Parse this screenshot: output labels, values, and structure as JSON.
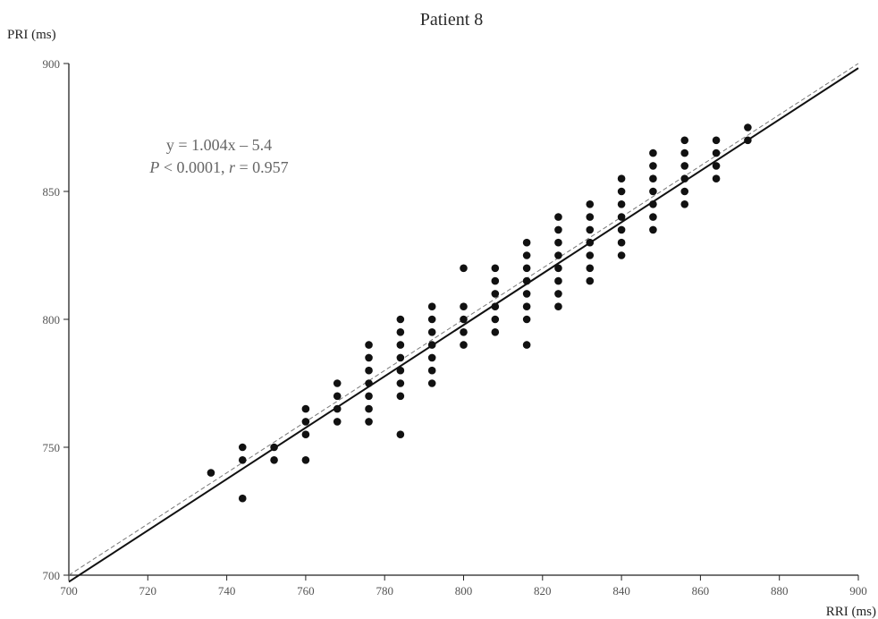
{
  "chart_data": {
    "type": "scatter",
    "title": "Patient 8",
    "xlabel": "RRI (ms)",
    "ylabel": "PRI (ms)",
    "xlim": [
      700,
      900
    ],
    "ylim": [
      700,
      900
    ],
    "x_ticks": [
      700,
      720,
      740,
      760,
      780,
      800,
      820,
      840,
      860,
      880,
      900
    ],
    "y_ticks": [
      700,
      750,
      800,
      850,
      900
    ],
    "grid": false,
    "legend": "none",
    "annotations": {
      "equation": "y = 1.004x – 5.4",
      "stats_p_symbol": "P",
      "stats_p_value": " < 0.0001, ",
      "stats_r_symbol": "r",
      "stats_r_value": " = 0.957"
    },
    "regression_line": {
      "slope": 1.004,
      "intercept": -5.4,
      "style": "solid"
    },
    "identity_line": {
      "slope": 1,
      "intercept": 0,
      "style": "dashed"
    },
    "points": [
      [
        736,
        740
      ],
      [
        744,
        730
      ],
      [
        744,
        745
      ],
      [
        744,
        750
      ],
      [
        752,
        745
      ],
      [
        752,
        750
      ],
      [
        760,
        745
      ],
      [
        760,
        755
      ],
      [
        760,
        760
      ],
      [
        760,
        765
      ],
      [
        768,
        760
      ],
      [
        768,
        765
      ],
      [
        768,
        770
      ],
      [
        768,
        775
      ],
      [
        776,
        760
      ],
      [
        776,
        765
      ],
      [
        776,
        770
      ],
      [
        776,
        775
      ],
      [
        776,
        780
      ],
      [
        776,
        785
      ],
      [
        776,
        790
      ],
      [
        784,
        755
      ],
      [
        784,
        770
      ],
      [
        784,
        775
      ],
      [
        784,
        780
      ],
      [
        784,
        785
      ],
      [
        784,
        790
      ],
      [
        784,
        795
      ],
      [
        784,
        800
      ],
      [
        792,
        775
      ],
      [
        792,
        780
      ],
      [
        792,
        785
      ],
      [
        792,
        790
      ],
      [
        792,
        795
      ],
      [
        792,
        800
      ],
      [
        792,
        805
      ],
      [
        800,
        790
      ],
      [
        800,
        795
      ],
      [
        800,
        800
      ],
      [
        800,
        805
      ],
      [
        800,
        820
      ],
      [
        808,
        795
      ],
      [
        808,
        800
      ],
      [
        808,
        805
      ],
      [
        808,
        810
      ],
      [
        808,
        815
      ],
      [
        808,
        820
      ],
      [
        816,
        790
      ],
      [
        816,
        800
      ],
      [
        816,
        805
      ],
      [
        816,
        810
      ],
      [
        816,
        815
      ],
      [
        816,
        820
      ],
      [
        816,
        825
      ],
      [
        816,
        830
      ],
      [
        824,
        805
      ],
      [
        824,
        810
      ],
      [
        824,
        815
      ],
      [
        824,
        820
      ],
      [
        824,
        825
      ],
      [
        824,
        830
      ],
      [
        824,
        835
      ],
      [
        824,
        840
      ],
      [
        832,
        815
      ],
      [
        832,
        820
      ],
      [
        832,
        825
      ],
      [
        832,
        830
      ],
      [
        832,
        835
      ],
      [
        832,
        840
      ],
      [
        832,
        845
      ],
      [
        840,
        825
      ],
      [
        840,
        830
      ],
      [
        840,
        835
      ],
      [
        840,
        840
      ],
      [
        840,
        845
      ],
      [
        840,
        850
      ],
      [
        840,
        855
      ],
      [
        848,
        835
      ],
      [
        848,
        840
      ],
      [
        848,
        845
      ],
      [
        848,
        850
      ],
      [
        848,
        855
      ],
      [
        848,
        860
      ],
      [
        848,
        865
      ],
      [
        856,
        845
      ],
      [
        856,
        850
      ],
      [
        856,
        855
      ],
      [
        856,
        860
      ],
      [
        856,
        865
      ],
      [
        856,
        870
      ],
      [
        864,
        855
      ],
      [
        864,
        860
      ],
      [
        864,
        865
      ],
      [
        864,
        870
      ],
      [
        872,
        870
      ],
      [
        872,
        875
      ]
    ],
    "colors": {
      "points": "#111111",
      "regression": "#111111",
      "identity": "#777777",
      "axis": "#222222"
    }
  }
}
